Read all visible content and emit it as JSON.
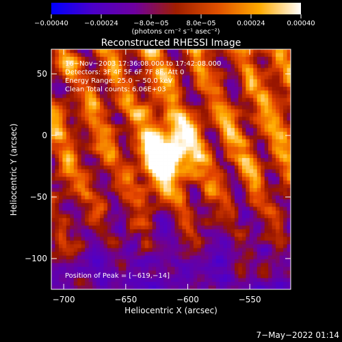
{
  "chart_data": {
    "type": "heatmap",
    "title": "Reconstructed RHESSI Image",
    "xlabel": "Heliocentric X (arcsec)",
    "ylabel": "Heliocentric Y (arcsec)",
    "xlim": [
      -710,
      -517
    ],
    "ylim": [
      -125,
      70
    ],
    "x_ticks": [
      {
        "value": -700,
        "label": "−700"
      },
      {
        "value": -650,
        "label": "−650"
      },
      {
        "value": -600,
        "label": "−600"
      },
      {
        "value": -550,
        "label": "−550"
      }
    ],
    "y_ticks": [
      {
        "value": 50,
        "label": "50"
      },
      {
        "value": 0,
        "label": "0"
      },
      {
        "value": -50,
        "label": "−50"
      },
      {
        "value": -100,
        "label": "−100"
      }
    ],
    "colorbar": {
      "range": [
        -0.0004,
        0.0004
      ],
      "ticks": [
        {
          "value": -0.0004,
          "label": "−0.00040"
        },
        {
          "value": -0.00024,
          "label": "−0.00024"
        },
        {
          "value": -8e-05,
          "label": "−8.0e−05"
        },
        {
          "value": 8e-05,
          "label": "8.0e−05"
        },
        {
          "value": 0.00024,
          "label": "0.00024"
        },
        {
          "value": 0.0004,
          "label": "0.00040"
        }
      ],
      "unit_label": "(photons cm⁻² s⁻¹ asec⁻²)",
      "colors": [
        "#0000ff",
        "#4b00c8",
        "#6e00a0",
        "#a01e00",
        "#e05000",
        "#ffaa00",
        "#ffffff"
      ]
    },
    "info_lines": [
      "16−Nov−2003 17:36:08.000 to 17:42:08.000",
      "Detectors: 3F 4F 5F 6F 7F 8F, Att 0",
      "Energy Range: 25.0 − 50.0 keV",
      "Clean     Total counts: 6.06E+03"
    ],
    "peak_label": "Position of Peak = [−619,−14]",
    "peak": {
      "x": -619,
      "y": -14
    }
  },
  "footer": {
    "date": "7−May−2022 01:14"
  }
}
